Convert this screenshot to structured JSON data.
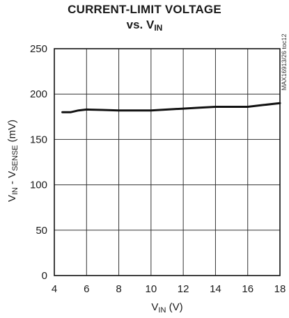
{
  "chart_data": {
    "type": "line",
    "title_line1": "CURRENT-LIMIT VOLTAGE",
    "title_line2_prefix": "vs. V",
    "title_line2_sub": "IN",
    "xlabel": {
      "main": "V",
      "sub": "IN",
      "unit": " (V)"
    },
    "ylabel": {
      "main1": "V",
      "sub1": "IN",
      "mid": " - V",
      "sub2": "SENSE",
      "unit": " (mV)"
    },
    "figure_code": "MAX16913/26 toc12",
    "xlim": [
      4,
      18
    ],
    "ylim": [
      0,
      250
    ],
    "x_ticks": [
      4,
      6,
      8,
      10,
      12,
      14,
      16,
      18
    ],
    "y_ticks": [
      0,
      50,
      100,
      150,
      200,
      250
    ],
    "grid": true,
    "series": [
      {
        "x": [
          4.5,
          5.0,
          5.5,
          6.0,
          7.0,
          8.0,
          9.0,
          10.0,
          11.0,
          12.0,
          13.0,
          14.0,
          15.0,
          16.0,
          17.0,
          18.0
        ],
        "y": [
          180,
          180,
          182,
          183,
          182.5,
          182,
          182,
          182,
          183,
          184,
          185,
          186,
          186,
          186,
          188,
          190
        ]
      }
    ],
    "line_color": "#111111"
  }
}
